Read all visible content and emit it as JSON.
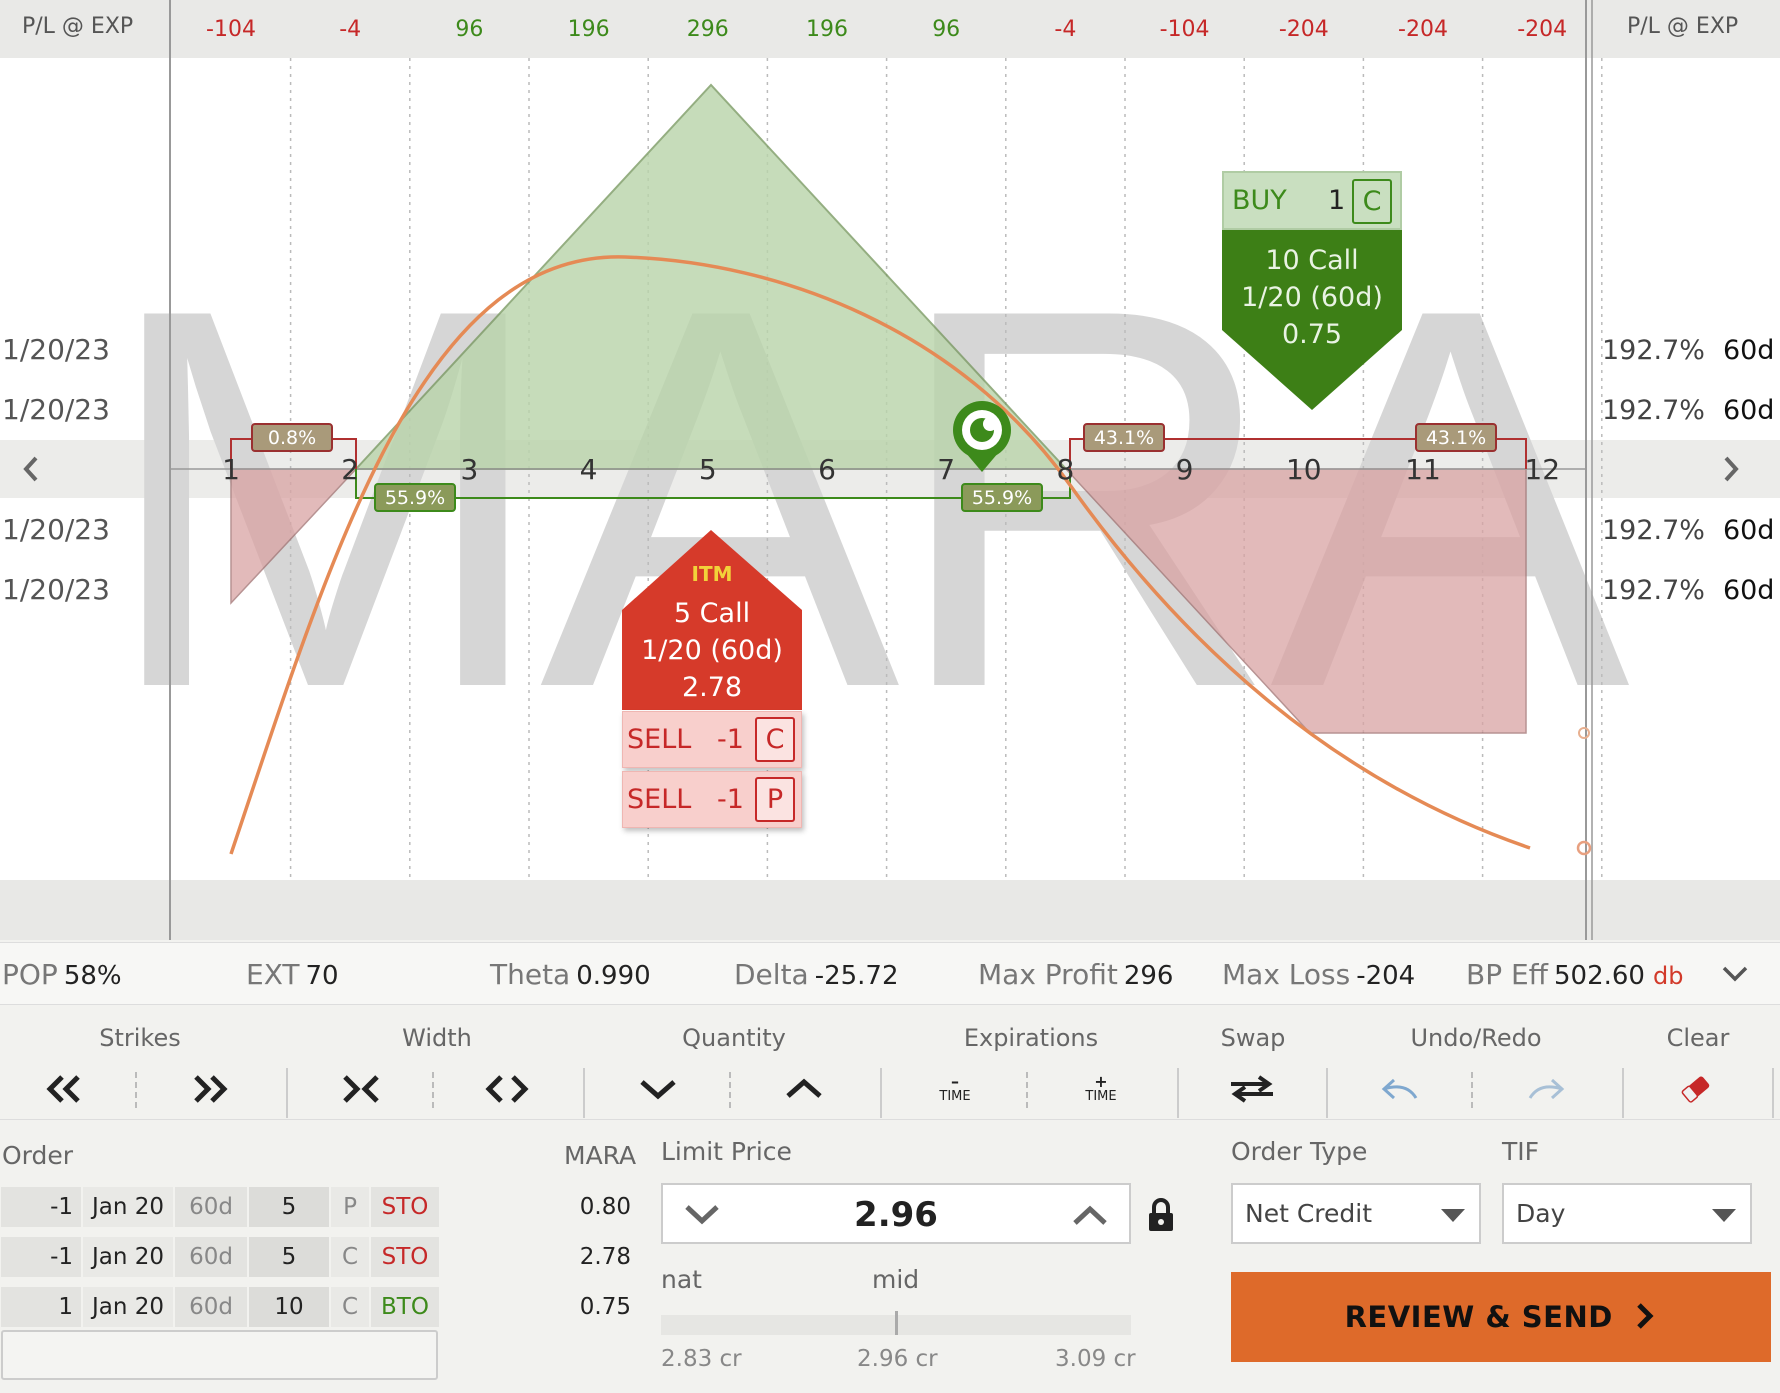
{
  "chart_header": {
    "left_label": "P/L @ EXP",
    "right_label": "P/L @ EXP",
    "pl_values": [
      "-104",
      "-4",
      "96",
      "196",
      "296",
      "196",
      "96",
      "-4",
      "-104",
      "-204",
      "-204",
      "-204"
    ]
  },
  "symbol_watermark": "MARA",
  "strike_axis": [
    "1",
    "2",
    "3",
    "4",
    "5",
    "6",
    "7",
    "8",
    "9",
    "10",
    "11",
    "12"
  ],
  "expirations": [
    {
      "date": "1/20/23",
      "iv": "192.7%",
      "dte": "60d"
    },
    {
      "date": "1/20/23",
      "iv": "192.7%",
      "dte": "60d"
    },
    {
      "date": "1/20/23",
      "iv": "192.7%",
      "dte": "60d"
    },
    {
      "date": "1/20/23",
      "iv": "192.7%",
      "dte": "60d"
    }
  ],
  "probabilities": {
    "p1": "0.8%",
    "p2": "55.9%",
    "p3": "55.9%",
    "p4": "43.1%",
    "p5": "43.1%"
  },
  "buy_leg": {
    "action": "BUY",
    "qty": "1",
    "type": "C",
    "line1": "10 Call",
    "line2": "1/20 (60d)",
    "line3": "0.75"
  },
  "sell_leg": {
    "badge": "ITM",
    "line1": "5 Call",
    "line2": "1/20 (60d)",
    "line3": "2.78",
    "rows": [
      {
        "action": "SELL",
        "qty": "-1",
        "type": "C"
      },
      {
        "action": "SELL",
        "qty": "-1",
        "type": "P"
      }
    ]
  },
  "stats": {
    "pop_label": "POP",
    "pop_value": "58%",
    "ext_label": "EXT",
    "ext_value": "70",
    "theta_label": "Theta",
    "theta_value": "0.990",
    "delta_label": "Delta",
    "delta_value": "-25.72",
    "maxprofit_label": "Max Profit",
    "maxprofit_value": "296",
    "maxloss_label": "Max Loss",
    "maxloss_value": "-204",
    "bp_label": "BP Eff",
    "bp_value": "502.60",
    "bp_unit": "db"
  },
  "toolbar": {
    "strikes": "Strikes",
    "width": "Width",
    "quantity": "Quantity",
    "expirations": "Expirations",
    "swap": "Swap",
    "undo_redo": "Undo/Redo",
    "clear": "Clear",
    "minus_time_sign": "–",
    "plus_time_sign": "+",
    "time_word": "TIME"
  },
  "order": {
    "label": "Order",
    "symbol": "MARA",
    "legs": [
      {
        "qty": "-1",
        "date": "Jan 20",
        "dte": "60d",
        "strike": "5",
        "pc": "P",
        "code": "STO",
        "price": "0.80"
      },
      {
        "qty": "-1",
        "date": "Jan 20",
        "dte": "60d",
        "strike": "5",
        "pc": "C",
        "code": "STO",
        "price": "2.78"
      },
      {
        "qty": "1",
        "date": "Jan 20",
        "dte": "60d",
        "strike": "10",
        "pc": "C",
        "code": "BTO",
        "price": "0.75"
      }
    ],
    "limit_label": "Limit Price",
    "limit_value": "2.96",
    "nat_label": "nat",
    "mid_label": "mid",
    "nat_price": "2.83 cr",
    "mid_price": "2.96 cr",
    "far_price": "3.09 cr",
    "order_type_label": "Order Type",
    "order_type_value": "Net Credit",
    "tif_label": "TIF",
    "tif_value": "Day",
    "send_label": "REVIEW & SEND"
  },
  "colors": {
    "profit": "#3d8a1b",
    "loss": "#c62828",
    "accent": "#de6a2a"
  }
}
